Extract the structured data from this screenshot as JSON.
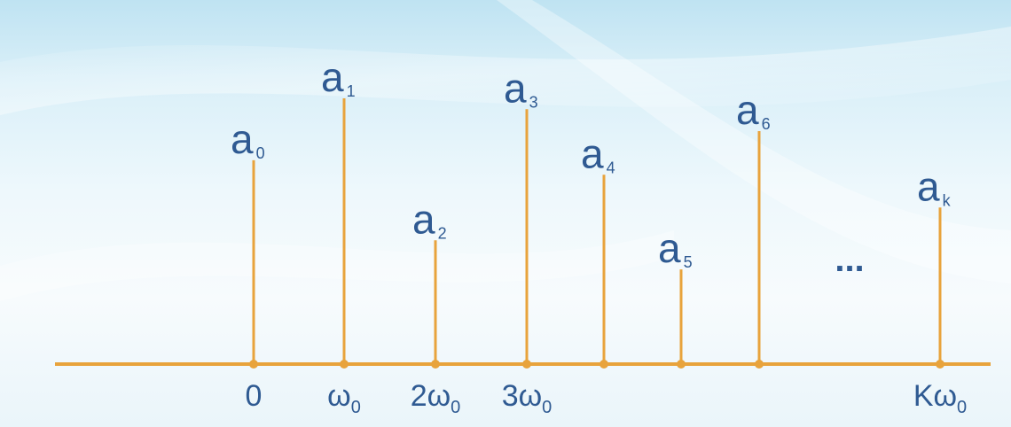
{
  "colors": {
    "stem": "#e8a33c",
    "text": "#2f5a92"
  },
  "spectrum": {
    "lines": [
      {
        "letter": "a",
        "sub": "0",
        "rel_height": 0.56
      },
      {
        "letter": "a",
        "sub": "1",
        "rel_height": 0.73
      },
      {
        "letter": "a",
        "sub": "2",
        "rel_height": 0.34
      },
      {
        "letter": "a",
        "sub": "3",
        "rel_height": 0.7
      },
      {
        "letter": "a",
        "sub": "4",
        "rel_height": 0.52
      },
      {
        "letter": "a",
        "sub": "5",
        "rel_height": 0.26
      },
      {
        "letter": "a",
        "sub": "6",
        "rel_height": 0.64
      },
      {
        "letter": "a",
        "sub": "k",
        "rel_height": 0.43
      }
    ],
    "ticks": [
      {
        "main": "0",
        "sub": ""
      },
      {
        "main": "ω",
        "sub": "0"
      },
      {
        "main": "2ω",
        "sub": "0"
      },
      {
        "main": "3ω",
        "sub": "0"
      },
      {
        "main": "",
        "sub": ""
      },
      {
        "main": "",
        "sub": ""
      },
      {
        "main": "",
        "sub": ""
      },
      {
        "main": "Kω",
        "sub": "0"
      }
    ],
    "ellipsis": "..."
  }
}
